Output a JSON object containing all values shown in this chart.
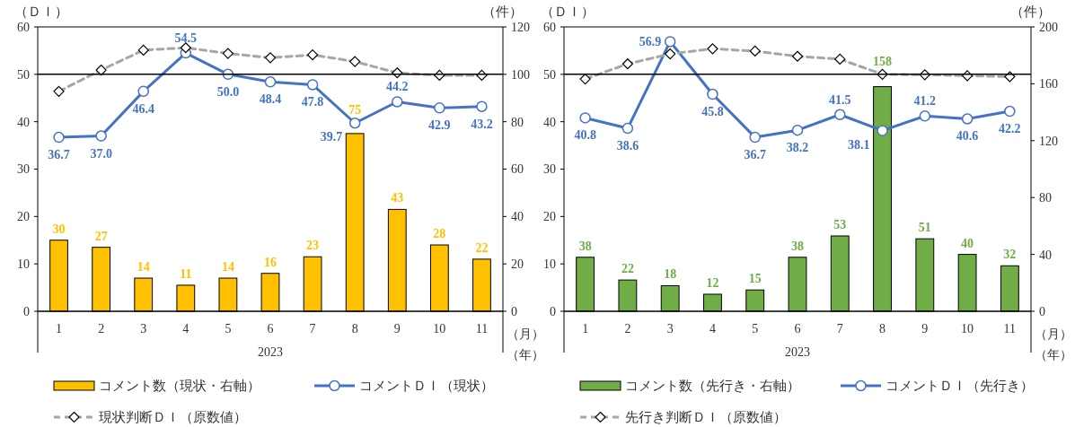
{
  "chart_data": [
    {
      "type": "bar",
      "ylabel": "（ＤＩ）",
      "y2label": "（件）",
      "xlabel": "2023",
      "annotations": [
        "（月）",
        "（年）"
      ],
      "categories": [
        "1",
        "2",
        "3",
        "4",
        "5",
        "6",
        "7",
        "8",
        "9",
        "10",
        "11"
      ],
      "ylim": [
        0,
        60
      ],
      "yticks": [
        0,
        10,
        20,
        30,
        40,
        50,
        60
      ],
      "y2lim": [
        0,
        120
      ],
      "y2ticks": [
        0,
        20,
        40,
        60,
        80,
        100,
        120
      ],
      "legend": "bottom",
      "ref_lines": [
        {
          "axis": "y",
          "value": 50,
          "color": "#000000"
        }
      ],
      "series": [
        {
          "name": "コメント数（現状・右軸）",
          "axis": "y2",
          "color": "#ffc000",
          "values": [
            30,
            27,
            14,
            11,
            14,
            16,
            23,
            75,
            43,
            28,
            22
          ],
          "value_labels": [
            "30",
            "27",
            "14",
            "11",
            "14",
            "16",
            "23",
            "75",
            "43",
            "28",
            "22"
          ]
        },
        {
          "name": "コメントＤＩ（現状）",
          "type": "line",
          "color": "#4472c4",
          "marker": "circle",
          "line_style": "solid",
          "values": [
            36.7,
            37.0,
            46.4,
            54.5,
            50.0,
            48.4,
            47.8,
            39.7,
            44.2,
            42.9,
            43.2
          ],
          "value_labels": [
            "36.7",
            "37.0",
            "46.4",
            "54.5",
            "50.0",
            "48.4",
            "47.8",
            "39.7",
            "44.2",
            "42.9",
            "43.2"
          ]
        },
        {
          "name": "現状判断ＤＩ（原数値）",
          "type": "line",
          "color": "#a6a6a6",
          "marker": "diamond",
          "line_style": "dashed",
          "values": [
            46.4,
            50.9,
            55.1,
            55.6,
            54.4,
            53.5,
            54.1,
            52.7,
            50.3,
            49.8,
            49.8
          ]
        }
      ]
    },
    {
      "type": "bar",
      "ylabel": "（ＤＩ）",
      "y2label": "（件）",
      "xlabel": "2023",
      "annotations": [
        "（月）",
        "（年）"
      ],
      "categories": [
        "1",
        "2",
        "3",
        "4",
        "5",
        "6",
        "7",
        "8",
        "9",
        "10",
        "11"
      ],
      "ylim": [
        0,
        60
      ],
      "yticks": [
        0,
        10,
        20,
        30,
        40,
        50,
        60
      ],
      "y2lim": [
        0,
        200
      ],
      "y2ticks": [
        0,
        40,
        80,
        120,
        160,
        200
      ],
      "legend": "bottom",
      "ref_lines": [
        {
          "axis": "y",
          "value": 50,
          "color": "#000000"
        }
      ],
      "series": [
        {
          "name": "コメント数（先行き・右軸）",
          "axis": "y2",
          "color": "#70ad47",
          "values": [
            38,
            22,
            18,
            12,
            15,
            38,
            53,
            158,
            51,
            40,
            32
          ],
          "value_labels": [
            "38",
            "22",
            "18",
            "12",
            "15",
            "38",
            "53",
            "158",
            "51",
            "40",
            "32"
          ]
        },
        {
          "name": "コメントＤＩ（先行き）",
          "type": "line",
          "color": "#4472c4",
          "marker": "circle",
          "line_style": "solid",
          "values": [
            40.8,
            38.6,
            56.9,
            45.8,
            36.7,
            38.2,
            41.5,
            38.1,
            41.2,
            40.6,
            42.2
          ],
          "value_labels": [
            "40.8",
            "38.6",
            "56.9",
            "45.8",
            "36.7",
            "38.2",
            "41.5",
            "38.1",
            "41.2",
            "40.6",
            "42.2"
          ]
        },
        {
          "name": "先行き判断ＤＩ（原数値）",
          "type": "line",
          "color": "#a6a6a6",
          "marker": "diamond",
          "line_style": "dashed",
          "values": [
            49.0,
            52.2,
            54.3,
            55.4,
            54.9,
            53.8,
            53.2,
            50.0,
            49.9,
            49.7,
            49.5
          ]
        }
      ]
    }
  ]
}
